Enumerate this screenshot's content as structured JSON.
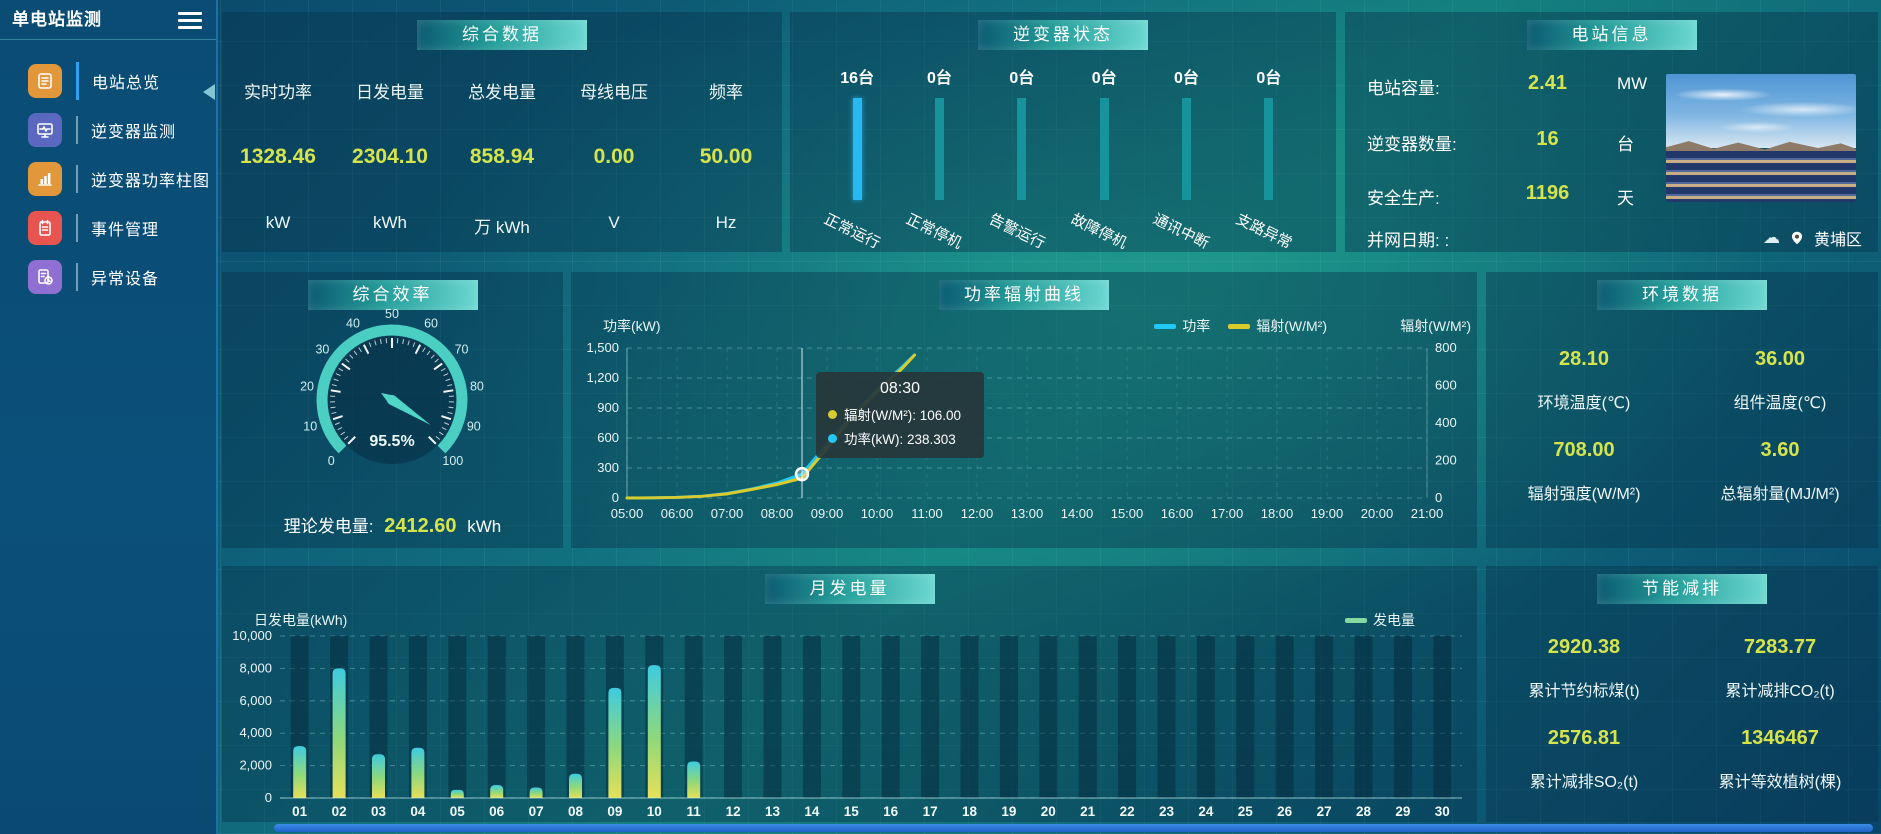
{
  "app": {
    "title": "单电站监测"
  },
  "sidebar": {
    "items": [
      {
        "label": "电站总览",
        "icon": "overview-doc-icon",
        "color": "#e2973a",
        "active": true
      },
      {
        "label": "逆变器监测",
        "icon": "inverter-monitor-icon",
        "color": "#5a68c0",
        "active": false
      },
      {
        "label": "逆变器功率柱图",
        "icon": "power-barchart-icon",
        "color": "#e2973a",
        "active": false
      },
      {
        "label": "事件管理",
        "icon": "event-clipboard-icon",
        "color": "#e85450",
        "active": false
      },
      {
        "label": "异常设备",
        "icon": "abnormal-device-icon",
        "color": "#8f6fd2",
        "active": false
      }
    ]
  },
  "panels": {
    "summary": {
      "title": "综合数据",
      "stats": [
        {
          "label": "实时功率",
          "value": "1328.46",
          "unit": "kW"
        },
        {
          "label": "日发电量",
          "value": "2304.10",
          "unit": "kWh"
        },
        {
          "label": "总发电量",
          "value": "858.94",
          "unit": "万 kWh"
        },
        {
          "label": "母线电压",
          "value": "0.00",
          "unit": "V"
        },
        {
          "label": "频率",
          "value": "50.00",
          "unit": "Hz"
        }
      ]
    },
    "inverter_status": {
      "title": "逆变器状态",
      "items": [
        {
          "count": "16台",
          "label": "正常运行",
          "highlight": true
        },
        {
          "count": "0台",
          "label": "正常停机",
          "highlight": false
        },
        {
          "count": "0台",
          "label": "告警运行",
          "highlight": false
        },
        {
          "count": "0台",
          "label": "故障停机",
          "highlight": false
        },
        {
          "count": "0台",
          "label": "通讯中断",
          "highlight": false
        },
        {
          "count": "0台",
          "label": "支路异常",
          "highlight": false
        }
      ]
    },
    "station_info": {
      "title": "电站信息",
      "rows": [
        {
          "label": "电站容量:",
          "value": "2.41",
          "unit": "MW"
        },
        {
          "label": "逆变器数量:",
          "value": "16",
          "unit": "台"
        },
        {
          "label": "安全生产:",
          "value": "1196",
          "unit": "天"
        },
        {
          "label": "并网日期: :",
          "value": "",
          "unit": ""
        }
      ],
      "location": "黄埔区"
    },
    "efficiency": {
      "title": "综合效率",
      "theory_label": "理论发电量:",
      "theory_value": "2412.60",
      "theory_unit": "kWh"
    },
    "power_radiation": {
      "title": "功率辐射曲线"
    },
    "environment": {
      "title": "环境数据",
      "items": [
        {
          "value": "28.10",
          "label": "环境温度(℃)"
        },
        {
          "value": "36.00",
          "label": "组件温度(℃)"
        },
        {
          "value": "708.00",
          "label": "辐射强度(W/M²)"
        },
        {
          "value": "3.60",
          "label": "总辐射量(MJ/M²)"
        }
      ]
    },
    "monthly": {
      "title": "月发电量"
    },
    "saving": {
      "title": "节能减排",
      "items": [
        {
          "value": "2920.38",
          "label": "累计节约标煤(t)"
        },
        {
          "value": "7283.77",
          "label": "累计减排CO₂(t)"
        },
        {
          "value": "2576.81",
          "label": "累计减排SO₂(t)"
        },
        {
          "value": "1346467",
          "label": "累计等效植树(棵)"
        }
      ]
    }
  },
  "colors": {
    "accent_value": "#d6e44c",
    "power_line": "#22c8f5",
    "radiation_line": "#d9cb2e",
    "bar_active": "#29b9f2",
    "bar_inactive": "#17939c",
    "gauge": "#4fd6c7",
    "generation_legend": "#86d9a0"
  },
  "chart_data": [
    {
      "id": "inverter-status",
      "type": "bar",
      "title": "逆变器状态",
      "categories": [
        "正常运行",
        "正常停机",
        "告警运行",
        "故障停机",
        "通讯中断",
        "支路异常"
      ],
      "values": [
        16,
        0,
        0,
        0,
        0,
        0
      ],
      "value_labels": [
        "16台",
        "0台",
        "0台",
        "0台",
        "0台",
        "0台"
      ],
      "bar_color_active": "#29b9f2",
      "bar_color_inactive": "#17939c"
    },
    {
      "id": "efficiency-gauge",
      "type": "gauge",
      "title": "综合效率",
      "min": 0,
      "max": 100,
      "tick_step": 10,
      "value": 95.5,
      "label": "95.5%",
      "color": "#4fd6c7"
    },
    {
      "id": "power-radiation",
      "type": "line",
      "title": "功率辐射曲线",
      "x_ticks": [
        "05:00",
        "06:00",
        "07:00",
        "08:00",
        "09:00",
        "10:00",
        "11:00",
        "12:00",
        "13:00",
        "14:00",
        "15:00",
        "16:00",
        "17:00",
        "18:00",
        "19:00",
        "20:00",
        "21:00"
      ],
      "left_axis": {
        "label": "功率(kW)",
        "min": 0,
        "max": 1500,
        "ticks": [
          0,
          300,
          600,
          900,
          1200,
          1500
        ]
      },
      "right_axis": {
        "label": "辐射(W/M²)",
        "min": 0,
        "max": 800,
        "ticks": [
          0,
          200,
          400,
          600,
          800
        ]
      },
      "series": [
        {
          "name": "功率",
          "axis": "left",
          "color": "#22c8f5",
          "points": [
            [
              5,
              0
            ],
            [
              5.5,
              1
            ],
            [
              6,
              6
            ],
            [
              6.5,
              18
            ],
            [
              7,
              45
            ],
            [
              7.5,
              90
            ],
            [
              8,
              150
            ],
            [
              8.5,
              238.303
            ],
            [
              9,
              540
            ],
            [
              9.5,
              830
            ],
            [
              10,
              1080
            ],
            [
              10.5,
              1310
            ],
            [
              10.75,
              1430
            ]
          ]
        },
        {
          "name": "辐射(W/M²)",
          "axis": "right",
          "color": "#d9cb2e",
          "points": [
            [
              5,
              0
            ],
            [
              5.5,
              1
            ],
            [
              6,
              3
            ],
            [
              6.5,
              9
            ],
            [
              7,
              22
            ],
            [
              7.5,
              46
            ],
            [
              8,
              72
            ],
            [
              8.5,
              106
            ],
            [
              9,
              265
            ],
            [
              9.5,
              430
            ],
            [
              10,
              565
            ],
            [
              10.5,
              690
            ],
            [
              10.75,
              762
            ]
          ]
        }
      ],
      "tooltip": {
        "time": "08:30",
        "hour": 8.5,
        "rows": [
          {
            "color": "#d9cb2e",
            "text": "辐射(W/M²): 106.00"
          },
          {
            "color": "#22c8f5",
            "text": "功率(kW): 238.303"
          }
        ]
      }
    },
    {
      "id": "monthly-generation",
      "type": "bar",
      "title": "月发电量",
      "ylabel": "日发电量(kWh)",
      "legend": "发电量",
      "legend_color": "#86d9a0",
      "ylim": [
        0,
        10000
      ],
      "yticks": [
        0,
        2000,
        4000,
        6000,
        8000,
        10000
      ],
      "categories": [
        "01",
        "02",
        "03",
        "04",
        "05",
        "06",
        "07",
        "08",
        "09",
        "10",
        "11",
        "12",
        "13",
        "14",
        "15",
        "16",
        "17",
        "18",
        "19",
        "20",
        "21",
        "22",
        "23",
        "24",
        "25",
        "26",
        "27",
        "28",
        "29",
        "30"
      ],
      "values": [
        3200,
        8000,
        2700,
        3100,
        500,
        800,
        650,
        1500,
        6800,
        8200,
        2250,
        0,
        0,
        0,
        0,
        0,
        0,
        0,
        0,
        0,
        0,
        0,
        0,
        0,
        0,
        0,
        0,
        0,
        0,
        0
      ]
    }
  ]
}
